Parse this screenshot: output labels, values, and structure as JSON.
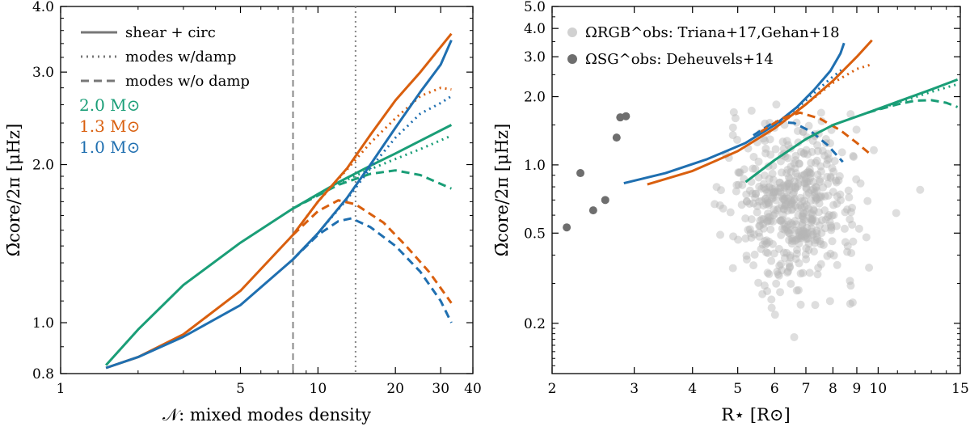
{
  "figure": {
    "left_panel": {
      "xlabel": "𝒩:  mixed modes density",
      "ylabel": "Ω̄core/2π [μHz]",
      "xlim": [
        1,
        40
      ],
      "ylim": [
        0.8,
        4.0
      ],
      "xticks": [
        "1",
        "5",
        "10",
        "20",
        "30",
        "40"
      ],
      "yticks": [
        "0.8",
        "1.0",
        "2.0",
        "3.0",
        "4.0"
      ],
      "legend": {
        "styles": [
          "shear + circ",
          "modes w/damp",
          "modes w/o damp"
        ],
        "masses": [
          "2.0 M⊙",
          "1.3 M⊙",
          "1.0 M⊙"
        ]
      }
    },
    "right_panel": {
      "xlabel": "R⋆ [R⊙]",
      "ylabel": "Ω̄core/2π [μHz]",
      "xlim": [
        2,
        15
      ],
      "ylim": [
        0.12,
        5.0
      ],
      "xticks": [
        "2",
        "3",
        "4",
        "5",
        "6",
        "7",
        "8",
        "9",
        "10",
        "15"
      ],
      "yticks": [
        "0.2",
        "0.5",
        "1.0",
        "2.0",
        "3.0",
        "4.0",
        "5.0"
      ],
      "legend": {
        "rgb": "ΩRGB^obs: Triana+17,Gehan+18",
        "sg": "ΩSG^obs: Deheuvels+14"
      }
    }
  },
  "chart_data": [
    {
      "type": "line",
      "title": "",
      "xlabel": "𝒩: mixed modes density",
      "ylabel": "Ω̄core/2π [μHz]",
      "xscale": "log",
      "yscale": "log",
      "xlim": [
        1,
        40
      ],
      "ylim": [
        0.8,
        4.0
      ],
      "vertical_lines": [
        {
          "x": 8,
          "style": "dashed"
        },
        {
          "x": 14,
          "style": "dotted"
        }
      ],
      "series": [
        {
          "name": "2.0 M⊙ shear + circ",
          "color": "#1a9e77",
          "style": "solid",
          "x": [
            1.5,
            2,
            3,
            5,
            8,
            12,
            16,
            20,
            25,
            33
          ],
          "y": [
            0.83,
            0.97,
            1.18,
            1.42,
            1.65,
            1.85,
            1.99,
            2.1,
            2.22,
            2.38
          ]
        },
        {
          "name": "2.0 M⊙ modes w/damp",
          "color": "#1a9e77",
          "style": "dotted",
          "x": [
            8,
            12,
            16,
            20,
            25,
            33
          ],
          "y": [
            1.65,
            1.84,
            1.96,
            2.05,
            2.14,
            2.27
          ]
        },
        {
          "name": "2.0 M⊙ modes w/o damp",
          "color": "#1a9e77",
          "style": "dashed",
          "x": [
            8,
            12,
            16,
            20,
            25,
            33
          ],
          "y": [
            1.65,
            1.83,
            1.92,
            1.95,
            1.91,
            1.8
          ]
        },
        {
          "name": "1.3 M⊙ shear + circ",
          "color": "#d95f0e",
          "style": "solid",
          "x": [
            1.5,
            2,
            3,
            5,
            8,
            10,
            13,
            16,
            20,
            25,
            33
          ],
          "y": [
            0.82,
            0.86,
            0.95,
            1.15,
            1.47,
            1.7,
            1.97,
            2.28,
            2.65,
            3.0,
            3.55
          ]
        },
        {
          "name": "1.3 M⊙ modes w/damp",
          "color": "#d95f0e",
          "style": "dotted",
          "x": [
            8,
            10,
            13,
            16,
            20,
            25,
            30,
            33
          ],
          "y": [
            1.47,
            1.7,
            1.96,
            2.2,
            2.45,
            2.7,
            2.8,
            2.78
          ]
        },
        {
          "name": "1.3 M⊙ modes w/o damp",
          "color": "#d95f0e",
          "style": "dashed",
          "x": [
            8,
            10,
            12,
            14,
            18,
            22,
            27,
            33
          ],
          "y": [
            1.47,
            1.63,
            1.71,
            1.68,
            1.55,
            1.4,
            1.25,
            1.09
          ]
        },
        {
          "name": "1.0 M⊙ shear + circ",
          "color": "#1f6fb0",
          "style": "solid",
          "x": [
            1.5,
            2,
            3,
            5,
            8,
            10,
            13,
            16,
            20,
            25,
            30,
            33
          ],
          "y": [
            0.82,
            0.86,
            0.94,
            1.08,
            1.32,
            1.48,
            1.73,
            2.0,
            2.35,
            2.75,
            3.1,
            3.45
          ]
        },
        {
          "name": "1.0 M⊙ modes w/damp",
          "color": "#1f6fb0",
          "style": "dotted",
          "x": [
            8,
            10,
            13,
            16,
            20,
            25,
            30,
            33
          ],
          "y": [
            1.32,
            1.48,
            1.72,
            1.97,
            2.25,
            2.5,
            2.62,
            2.7
          ]
        },
        {
          "name": "1.0 M⊙ modes w/o damp",
          "color": "#1f6fb0",
          "style": "dashed",
          "x": [
            8,
            10,
            12,
            13.5,
            16,
            20,
            25,
            30,
            33
          ],
          "y": [
            1.32,
            1.47,
            1.56,
            1.58,
            1.52,
            1.4,
            1.25,
            1.1,
            1.0
          ]
        }
      ]
    },
    {
      "type": "scatter",
      "title": "",
      "xlabel": "R⋆ [R⊙]",
      "ylabel": "Ω̄core/2π [μHz]",
      "xscale": "log",
      "yscale": "log",
      "xlim": [
        2,
        15
      ],
      "ylim": [
        0.12,
        5.0
      ],
      "series": [
        {
          "name": "1.0 M⊙ shear + circ",
          "color": "#1f6fb0",
          "style": "solid",
          "x": [
            2.85,
            3.5,
            4.3,
            5.2,
            6.0,
            6.7,
            7.3,
            7.9,
            8.3,
            8.45
          ],
          "y": [
            0.83,
            0.92,
            1.06,
            1.25,
            1.5,
            1.8,
            2.15,
            2.6,
            3.1,
            3.45
          ]
        },
        {
          "name": "1.0 M⊙ modes w/damp",
          "color": "#1f6fb0",
          "style": "dotted",
          "x": [
            6.0,
            6.7,
            7.3,
            7.9,
            8.3,
            8.45
          ],
          "y": [
            1.5,
            1.78,
            2.08,
            2.4,
            2.6,
            2.7
          ]
        },
        {
          "name": "1.0 M⊙ modes w/o damp",
          "color": "#1f6fb0",
          "style": "dashed",
          "x": [
            5.4,
            6.0,
            6.6,
            7.2,
            7.8,
            8.4
          ],
          "y": [
            1.35,
            1.55,
            1.53,
            1.4,
            1.22,
            1.03
          ]
        },
        {
          "name": "1.3 M⊙ shear + circ",
          "color": "#d95f0e",
          "style": "solid",
          "x": [
            3.2,
            4.0,
            5.0,
            6.0,
            7.0,
            8.0,
            9.0,
            9.7
          ],
          "y": [
            0.82,
            0.94,
            1.15,
            1.45,
            1.85,
            2.35,
            3.0,
            3.55
          ]
        },
        {
          "name": "1.3 M⊙ modes w/damp",
          "color": "#d95f0e",
          "style": "dotted",
          "x": [
            6.0,
            7.0,
            8.0,
            9.0,
            9.7
          ],
          "y": [
            1.45,
            1.85,
            2.3,
            2.65,
            2.78
          ]
        },
        {
          "name": "1.3 M⊙ modes w/o damp",
          "color": "#d95f0e",
          "style": "dashed",
          "x": [
            5.6,
            6.2,
            6.8,
            7.5,
            8.3,
            9.0,
            9.7
          ],
          "y": [
            1.4,
            1.6,
            1.7,
            1.6,
            1.42,
            1.25,
            1.1
          ]
        },
        {
          "name": "2.0 M⊙ shear + circ",
          "color": "#1a9e77",
          "style": "solid",
          "x": [
            5.2,
            6.0,
            7.0,
            8.0,
            9.5,
            11.0,
            13.0,
            14.8
          ],
          "y": [
            0.84,
            1.05,
            1.3,
            1.5,
            1.7,
            1.9,
            2.15,
            2.38
          ]
        },
        {
          "name": "2.0 M⊙ modes w/damp",
          "color": "#1a9e77",
          "style": "dotted",
          "x": [
            9.5,
            11.0,
            13.0,
            14.8
          ],
          "y": [
            1.7,
            1.88,
            2.1,
            2.27
          ]
        },
        {
          "name": "2.0 M⊙ modes w/o damp",
          "color": "#1a9e77",
          "style": "dashed",
          "x": [
            9.5,
            11.0,
            12.0,
            13.0,
            14.0,
            14.8
          ],
          "y": [
            1.7,
            1.85,
            1.92,
            1.93,
            1.88,
            1.8
          ]
        },
        {
          "name": "ΩSG^obs: Deheuvels+14",
          "color": "#6e6e6e",
          "style": "marker",
          "x": [
            2.15,
            2.3,
            2.45,
            2.6,
            2.75,
            2.8,
            2.88
          ],
          "y": [
            0.53,
            0.92,
            0.63,
            0.7,
            1.32,
            1.62,
            1.64
          ]
        }
      ]
    }
  ]
}
